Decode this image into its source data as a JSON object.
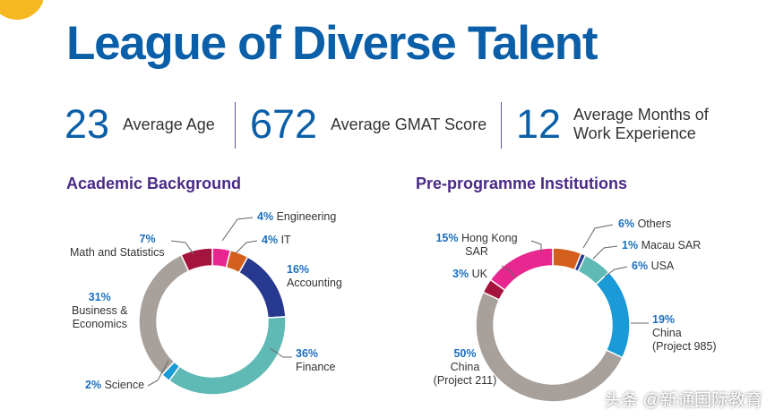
{
  "title": "League of Diverse Talent",
  "stats": [
    {
      "value": "23",
      "label": "Average Age"
    },
    {
      "value": "672",
      "label": "Average GMAT Score"
    },
    {
      "value": "12",
      "label_line1": "Average Months of",
      "label_line2": "Work Experience"
    }
  ],
  "watermark": "头条 @新通国际教育",
  "colors": {
    "title": "#0a5fa8",
    "section_title": "#4b2a86",
    "percent_label": "#1a6fbf"
  },
  "chart_data": [
    {
      "type": "pie",
      "variant": "donut",
      "title": "Academic Background",
      "series": [
        {
          "label": "Engineering",
          "pct_text": "4%",
          "value": 4,
          "color": "#e7268f"
        },
        {
          "label": "IT",
          "pct_text": "4%",
          "value": 4,
          "color": "#d2601c"
        },
        {
          "label": "Accounting",
          "pct_text": "16%",
          "value": 16,
          "color": "#27398f"
        },
        {
          "label": "Finance",
          "pct_text": "36%",
          "value": 36,
          "color": "#5fb9b5"
        },
        {
          "label": "Science",
          "pct_text": "2%",
          "value": 2,
          "color": "#1a9ad7"
        },
        {
          "label_lines": [
            "Business &",
            "Economics"
          ],
          "pct_text": "31%",
          "value": 31,
          "color": "#a8a09a"
        },
        {
          "label": "Math and Statistics",
          "pct_text": "7%",
          "value": 7,
          "color": "#a4143e"
        }
      ]
    },
    {
      "type": "pie",
      "variant": "donut",
      "title": "Pre-programme Institutions",
      "series": [
        {
          "label": "Others",
          "pct_text": "6%",
          "value": 6,
          "color": "#d2601c"
        },
        {
          "label": "Macau SAR",
          "pct_text": "1%",
          "value": 1,
          "color": "#27398f"
        },
        {
          "label": "USA",
          "pct_text": "6%",
          "value": 6,
          "color": "#5fb9b5"
        },
        {
          "label_lines": [
            "China",
            "(Project 985)"
          ],
          "pct_text": "19%",
          "value": 19,
          "color": "#1a9ad7"
        },
        {
          "label_lines": [
            "China",
            "(Project 211)"
          ],
          "pct_text": "50%",
          "value": 50,
          "color": "#a8a09a"
        },
        {
          "label": "UK",
          "pct_text": "3%",
          "value": 3,
          "color": "#a4143e"
        },
        {
          "label_lines": [
            "Hong Kong",
            "SAR"
          ],
          "pct_text": "15%",
          "value": 15,
          "color": "#e7268f"
        }
      ]
    }
  ]
}
